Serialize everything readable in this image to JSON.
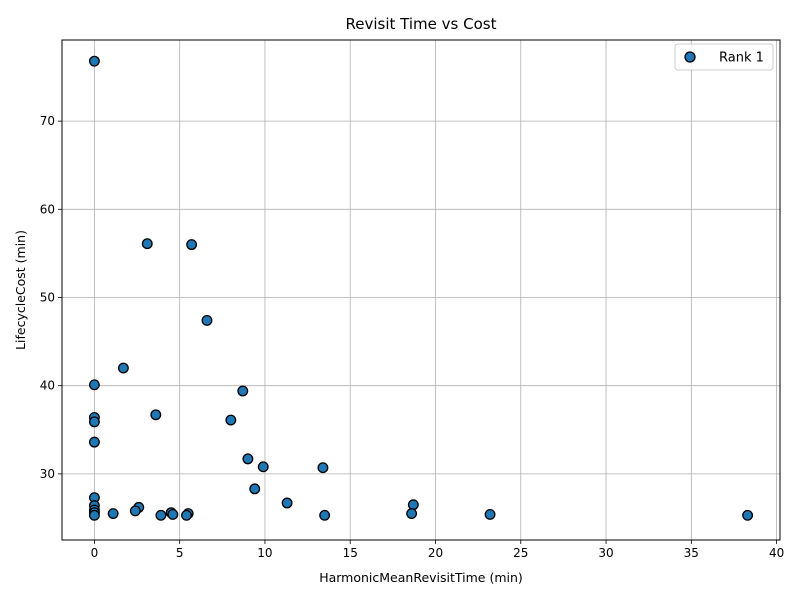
{
  "chart_data": {
    "type": "scatter",
    "title": "Revisit Time vs Cost",
    "xlabel": "HarmonicMeanRevisitTime (min)",
    "ylabel": "LifecycleCost (min)",
    "xlim": [
      -1.9,
      40.2
    ],
    "ylim": [
      22.5,
      79.2
    ],
    "xticks": [
      0,
      5,
      10,
      15,
      20,
      25,
      30,
      35,
      40
    ],
    "yticks": [
      30,
      40,
      50,
      60,
      70
    ],
    "grid": true,
    "legend": {
      "position": "top-right"
    },
    "series": [
      {
        "name": "Rank 1",
        "color": "#1f77b4",
        "points": [
          [
            0,
            76.8
          ],
          [
            3.1,
            56.1
          ],
          [
            5.7,
            56.0
          ],
          [
            6.6,
            47.4
          ],
          [
            1.7,
            42.0
          ],
          [
            0,
            40.1
          ],
          [
            8.7,
            39.4
          ],
          [
            3.6,
            36.7
          ],
          [
            0,
            36.4
          ],
          [
            0,
            35.9
          ],
          [
            8.0,
            36.1
          ],
          [
            0,
            33.6
          ],
          [
            9.0,
            31.7
          ],
          [
            9.9,
            30.8
          ],
          [
            13.4,
            30.7
          ],
          [
            9.4,
            28.3
          ],
          [
            0,
            27.3
          ],
          [
            11.3,
            26.7
          ],
          [
            18.7,
            26.5
          ],
          [
            0,
            26.4
          ],
          [
            0,
            25.9
          ],
          [
            2.6,
            26.2
          ],
          [
            2.4,
            25.8
          ],
          [
            0,
            25.6
          ],
          [
            1.1,
            25.5
          ],
          [
            4.5,
            25.6
          ],
          [
            4.6,
            25.4
          ],
          [
            5.5,
            25.5
          ],
          [
            5.4,
            25.3
          ],
          [
            3.9,
            25.3
          ],
          [
            13.5,
            25.3
          ],
          [
            18.6,
            25.5
          ],
          [
            23.2,
            25.4
          ],
          [
            38.3,
            25.3
          ],
          [
            0,
            25.3
          ]
        ]
      }
    ]
  }
}
